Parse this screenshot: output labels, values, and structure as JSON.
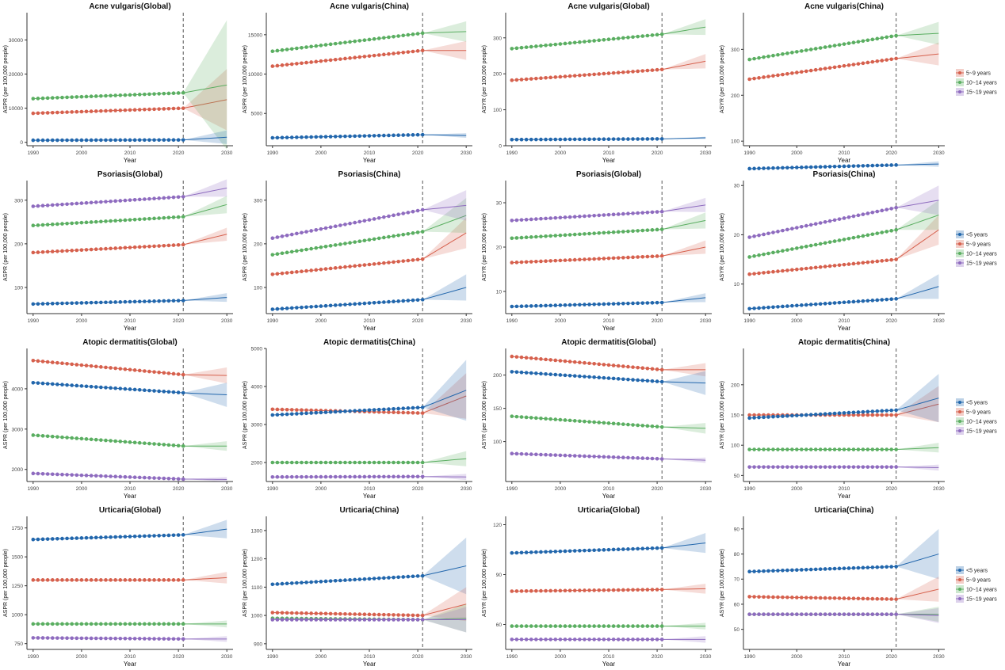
{
  "colors": {
    "u5": "#2166ac",
    "a5_9": "#d6604d",
    "a10_14": "#5aae61",
    "a15_19": "#8e6bbf",
    "axis": "#333333",
    "vline": "#555555"
  },
  "legends": [
    {
      "entries": [
        {
          "key": "a5_9",
          "label": "5~9 years"
        },
        {
          "key": "a10_14",
          "label": "10~14 years"
        },
        {
          "key": "a15_19",
          "label": "15~19 years"
        }
      ]
    },
    {
      "entries": [
        {
          "key": "u5",
          "label": "<5 years"
        },
        {
          "key": "a5_9",
          "label": "5~9 years"
        },
        {
          "key": "a10_14",
          "label": "10~14 years"
        },
        {
          "key": "a15_19",
          "label": "15~19 years"
        }
      ]
    },
    {
      "entries": [
        {
          "key": "u5",
          "label": "<5 years"
        },
        {
          "key": "a5_9",
          "label": "5~9 years"
        },
        {
          "key": "a10_14",
          "label": "10~14 years"
        },
        {
          "key": "a15_19",
          "label": "15~19 years"
        }
      ]
    },
    {
      "entries": [
        {
          "key": "u5",
          "label": "<5 years"
        },
        {
          "key": "a5_9",
          "label": "5~9 years"
        },
        {
          "key": "a10_14",
          "label": "10~14 years"
        },
        {
          "key": "a15_19",
          "label": "15~19 years"
        }
      ]
    }
  ],
  "chart_data": [
    {
      "type": "line",
      "title": "Acne vulgaris(Global)",
      "xlabel": "Year",
      "ylabel": "ASPR (per 100,000 people)",
      "xlim": [
        1990,
        2030
      ],
      "ylim": [
        -1000,
        38000
      ],
      "yticks": [
        0,
        10000,
        20000,
        30000
      ],
      "ytick_labels": [
        "0",
        "10000",
        "20000",
        "30000"
      ],
      "xticks": [
        1990,
        2000,
        2010,
        2020,
        2030
      ],
      "forecast_start": 2021,
      "series": [
        {
          "key": "a5_9",
          "start": 8500,
          "end": 10000,
          "pred_end": 12500,
          "band_end": 9000
        },
        {
          "key": "a10_14",
          "start": 12800,
          "end": 14500,
          "pred_end": 16800,
          "band_end": 19000
        },
        {
          "key": "a5_9_base",
          "color_key": "u5",
          "start": 600,
          "end": 700,
          "pred_end": 1500,
          "band_end": 2000
        }
      ]
    },
    {
      "type": "line",
      "title": "Acne vulgaris(China)",
      "xlabel": "Year",
      "ylabel": "ASPR (per 100,000 people)",
      "xlim": [
        1990,
        2030
      ],
      "ylim": [
        900,
        17800
      ],
      "yticks": [
        5000,
        10000,
        15000
      ],
      "ytick_labels": [
        "5000",
        "10000",
        "15000"
      ],
      "xticks": [
        1990,
        2000,
        2010,
        2020,
        2030
      ],
      "forecast_start": 2021,
      "series": [
        {
          "key": "a5_9",
          "start": 11000,
          "end": 13000,
          "pred_end": 13000,
          "band_end": 1200
        },
        {
          "key": "a10_14",
          "start": 12900,
          "end": 15200,
          "pred_end": 15400,
          "band_end": 1300
        },
        {
          "key": "a5_9_base",
          "color_key": "u5",
          "start": 1900,
          "end": 2300,
          "pred_end": 2200,
          "band_end": 300
        }
      ]
    },
    {
      "type": "line",
      "title": "Acne vulgaris(Global)",
      "xlabel": "Year",
      "ylabel": "ASYR (per 100,000 people)",
      "xlim": [
        1990,
        2030
      ],
      "ylim": [
        0,
        370
      ],
      "yticks": [
        0,
        100,
        200,
        300
      ],
      "ytick_labels": [
        "0",
        "100",
        "200",
        "300"
      ],
      "xticks": [
        1990,
        2000,
        2010,
        2020,
        2030
      ],
      "forecast_start": 2021,
      "series": [
        {
          "key": "a5_9",
          "start": 182,
          "end": 212,
          "pred_end": 235,
          "band_end": 20
        },
        {
          "key": "a10_14",
          "start": 270,
          "end": 310,
          "pred_end": 330,
          "band_end": 22
        },
        {
          "key": "a5_9_base",
          "color_key": "u5",
          "start": 17,
          "end": 19,
          "pred_end": 22,
          "band_end": 3
        }
      ]
    },
    {
      "type": "line",
      "title": "Acne vulgaris(China)",
      "xlabel": "Year",
      "ylabel": "ASYR (per 100,000 people)",
      "xlim": [
        1990,
        2030
      ],
      "ylim": [
        90,
        380
      ],
      "yticks": [
        100,
        200,
        300
      ],
      "ytick_labels": [
        "100",
        "200",
        "300"
      ],
      "xticks": [
        1990,
        2000,
        2010,
        2020,
        2030
      ],
      "forecast_start": 2021,
      "series": [
        {
          "key": "a5_9",
          "start": 235,
          "end": 280,
          "pred_end": 290,
          "band_end": 25
        },
        {
          "key": "a10_14",
          "start": 278,
          "end": 330,
          "pred_end": 335,
          "band_end": 25
        },
        {
          "key": "a5_9_base",
          "color_key": "u5",
          "start": 40,
          "end": 48,
          "pred_end": 50,
          "band_end": 6
        }
      ]
    },
    {
      "type": "line",
      "title": "Psoriasis(Global)",
      "xlabel": "Year",
      "ylabel": "ASPR (per 100,000 people)",
      "xlim": [
        1990,
        2030
      ],
      "ylim": [
        40,
        345
      ],
      "yticks": [
        100,
        200,
        300
      ],
      "ytick_labels": [
        "100",
        "200",
        "300"
      ],
      "xticks": [
        1990,
        2000,
        2010,
        2020,
        2030
      ],
      "forecast_start": 2021,
      "series": [
        {
          "key": "u5",
          "start": 62,
          "end": 70,
          "pred_end": 77,
          "band_end": 10
        },
        {
          "key": "a5_9",
          "start": 180,
          "end": 198,
          "pred_end": 222,
          "band_end": 15
        },
        {
          "key": "a10_14",
          "start": 242,
          "end": 262,
          "pred_end": 290,
          "band_end": 20
        },
        {
          "key": "a15_19",
          "start": 286,
          "end": 308,
          "pred_end": 328,
          "band_end": 20
        }
      ]
    },
    {
      "type": "line",
      "title": "Psoriasis(China)",
      "xlabel": "Year",
      "ylabel": "ASPR (per 100,000 people)",
      "xlim": [
        1990,
        2030
      ],
      "ylim": [
        40,
        345
      ],
      "yticks": [
        100,
        200,
        300
      ],
      "ytick_labels": [
        "100",
        "200",
        "300"
      ],
      "xticks": [
        1990,
        2000,
        2010,
        2020,
        2030
      ],
      "forecast_start": 2021,
      "series": [
        {
          "key": "u5",
          "start": 50,
          "end": 72,
          "pred_end": 100,
          "band_end": 30
        },
        {
          "key": "a5_9",
          "start": 130,
          "end": 165,
          "pred_end": 225,
          "band_end": 35
        },
        {
          "key": "a10_14",
          "start": 175,
          "end": 228,
          "pred_end": 265,
          "band_end": 40
        },
        {
          "key": "a15_19",
          "start": 213,
          "end": 278,
          "pred_end": 288,
          "band_end": 35
        }
      ]
    },
    {
      "type": "line",
      "title": "Psoriasis(Global)",
      "xlabel": "Year",
      "ylabel": "ASYR (per 100,000 people)",
      "xlim": [
        1990,
        2030
      ],
      "ylim": [
        5,
        35
      ],
      "yticks": [
        10,
        20,
        30
      ],
      "ytick_labels": [
        "10",
        "20",
        "30"
      ],
      "xticks": [
        1990,
        2000,
        2010,
        2020,
        2030
      ],
      "forecast_start": 2021,
      "series": [
        {
          "key": "u5",
          "start": 6.6,
          "end": 7.5,
          "pred_end": 8.6,
          "band_end": 1
        },
        {
          "key": "a5_9",
          "start": 16.5,
          "end": 18,
          "pred_end": 20,
          "band_end": 1.5
        },
        {
          "key": "a10_14",
          "start": 22,
          "end": 24,
          "pred_end": 26,
          "band_end": 1.8
        },
        {
          "key": "a15_19",
          "start": 26,
          "end": 28,
          "pred_end": 29.5,
          "band_end": 1.6
        }
      ]
    },
    {
      "type": "line",
      "title": "Psoriasis(China)",
      "xlabel": "Year",
      "ylabel": "ASYR (per 100,000 people)",
      "xlim": [
        1990,
        2030
      ],
      "ylim": [
        4,
        31
      ],
      "yticks": [
        10,
        20,
        30
      ],
      "ytick_labels": [
        "10",
        "20",
        "30"
      ],
      "xticks": [
        1990,
        2000,
        2010,
        2020,
        2030
      ],
      "forecast_start": 2021,
      "series": [
        {
          "key": "u5",
          "start": 5,
          "end": 7,
          "pred_end": 9.5,
          "band_end": 2.5
        },
        {
          "key": "a5_9",
          "start": 12,
          "end": 15,
          "pred_end": 21,
          "band_end": 3
        },
        {
          "key": "a10_14",
          "start": 15.5,
          "end": 21,
          "pred_end": 24,
          "band_end": 3
        },
        {
          "key": "a15_19",
          "start": 19.5,
          "end": 25.5,
          "pred_end": 27,
          "band_end": 3
        }
      ]
    },
    {
      "type": "line",
      "title": "Atopic dermatitis(Global)",
      "xlabel": "Year",
      "ylabel": "ASPR (per 100,000 people)",
      "xlim": [
        1990,
        2030
      ],
      "ylim": [
        1700,
        5000
      ],
      "yticks": [
        2000,
        3000,
        4000
      ],
      "ytick_labels": [
        "2000",
        "3000",
        "4000"
      ],
      "xticks": [
        1990,
        2000,
        2010,
        2020,
        2030
      ],
      "forecast_start": 2021,
      "series": [
        {
          "key": "a5_9",
          "start": 4700,
          "end": 4350,
          "pred_end": 4330,
          "band_end": 200
        },
        {
          "key": "u5",
          "start": 4150,
          "end": 3900,
          "pred_end": 3850,
          "band_end": 300
        },
        {
          "key": "a10_14",
          "start": 2850,
          "end": 2580,
          "pred_end": 2580,
          "band_end": 120
        },
        {
          "key": "a15_19",
          "start": 1900,
          "end": 1760,
          "pred_end": 1750,
          "band_end": 60
        }
      ]
    },
    {
      "type": "line",
      "title": "Atopic dermatitis(China)",
      "xlabel": "Year",
      "ylabel": "ASPR (per 100,000 people)",
      "xlim": [
        1990,
        2030
      ],
      "ylim": [
        1500,
        5000
      ],
      "yticks": [
        2000,
        3000,
        4000,
        5000
      ],
      "ytick_labels": [
        "2000",
        "3000",
        "4000",
        "5000"
      ],
      "xticks": [
        1990,
        2000,
        2010,
        2020,
        2030
      ],
      "forecast_start": 2021,
      "series": [
        {
          "key": "a5_9",
          "start": 3400,
          "end": 3300,
          "pred_end": 3750,
          "band_end": 600
        },
        {
          "key": "u5",
          "start": 3250,
          "end": 3450,
          "pred_end": 3900,
          "band_end": 800
        },
        {
          "key": "a10_14",
          "start": 2000,
          "end": 2000,
          "pred_end": 2100,
          "band_end": 200
        },
        {
          "key": "a15_19",
          "start": 1620,
          "end": 1630,
          "pred_end": 1620,
          "band_end": 80
        }
      ]
    },
    {
      "type": "line",
      "title": "Atopic dermatitis(Global)",
      "xlabel": "Year",
      "ylabel": "ASYR (per 100,000 people)",
      "xlim": [
        1990,
        2030
      ],
      "ylim": [
        40,
        240
      ],
      "yticks": [
        100,
        150,
        200
      ],
      "ytick_labels": [
        "100",
        "150",
        "200"
      ],
      "xticks": [
        1990,
        2000,
        2010,
        2020,
        2030
      ],
      "forecast_start": 2021,
      "series": [
        {
          "key": "a5_9",
          "start": 228,
          "end": 208,
          "pred_end": 208,
          "band_end": 10
        },
        {
          "key": "u5",
          "start": 205,
          "end": 190,
          "pred_end": 188,
          "band_end": 18
        },
        {
          "key": "a10_14",
          "start": 138,
          "end": 122,
          "pred_end": 120,
          "band_end": 8
        },
        {
          "key": "a15_19",
          "start": 82,
          "end": 74,
          "pred_end": 72,
          "band_end": 4
        }
      ]
    },
    {
      "type": "line",
      "title": "Atopic dermatitis(China)",
      "xlabel": "Year",
      "ylabel": "ASYR (per 100,000 people)",
      "xlim": [
        1990,
        2030
      ],
      "ylim": [
        40,
        260
      ],
      "yticks": [
        50,
        100,
        150,
        200
      ],
      "ytick_labels": [
        "50",
        "100",
        "150",
        "200"
      ],
      "xticks": [
        1990,
        2000,
        2010,
        2020,
        2030
      ],
      "forecast_start": 2021,
      "series": [
        {
          "key": "a5_9",
          "start": 150,
          "end": 150,
          "pred_end": 168,
          "band_end": 30
        },
        {
          "key": "u5",
          "start": 145,
          "end": 158,
          "pred_end": 178,
          "band_end": 40
        },
        {
          "key": "a10_14",
          "start": 93,
          "end": 93,
          "pred_end": 96,
          "band_end": 8
        },
        {
          "key": "a15_19",
          "start": 64,
          "end": 64,
          "pred_end": 63,
          "band_end": 5
        }
      ]
    },
    {
      "type": "line",
      "title": "Urticaria(Global)",
      "xlabel": "Year",
      "ylabel": "ASPR (per 100,000 people)",
      "xlim": [
        1990,
        2030
      ],
      "ylim": [
        700,
        1850
      ],
      "yticks": [
        750,
        1000,
        1250,
        1500,
        1750
      ],
      "ytick_labels": [
        "750",
        "1000",
        "1250",
        "1500",
        "1750"
      ],
      "xticks": [
        1990,
        2000,
        2010,
        2020,
        2030
      ],
      "forecast_start": 2021,
      "series": [
        {
          "key": "u5",
          "start": 1650,
          "end": 1690,
          "pred_end": 1740,
          "band_end": 80
        },
        {
          "key": "a5_9",
          "start": 1300,
          "end": 1300,
          "pred_end": 1320,
          "band_end": 50
        },
        {
          "key": "a10_14",
          "start": 920,
          "end": 920,
          "pred_end": 920,
          "band_end": 30
        },
        {
          "key": "a15_19",
          "start": 800,
          "end": 790,
          "pred_end": 790,
          "band_end": 25
        }
      ]
    },
    {
      "type": "line",
      "title": "Urticaria(China)",
      "xlabel": "Year",
      "ylabel": "ASPR (per 100,000 people)",
      "xlim": [
        1990,
        2030
      ],
      "ylim": [
        880,
        1350
      ],
      "yticks": [
        900,
        1000,
        1100,
        1200,
        1300
      ],
      "ytick_labels": [
        "900",
        "1000",
        "1100",
        "1200",
        "1300"
      ],
      "xticks": [
        1990,
        2000,
        2010,
        2020,
        2030
      ],
      "forecast_start": 2021,
      "series": [
        {
          "key": "u5",
          "start": 1110,
          "end": 1140,
          "pred_end": 1175,
          "band_end": 100
        },
        {
          "key": "a5_9",
          "start": 1010,
          "end": 1000,
          "pred_end": 1040,
          "band_end": 60
        },
        {
          "key": "a10_14",
          "start": 990,
          "end": 985,
          "pred_end": 990,
          "band_end": 50
        },
        {
          "key": "a15_19",
          "start": 985,
          "end": 985,
          "pred_end": 985,
          "band_end": 45
        }
      ]
    },
    {
      "type": "line",
      "title": "Urticaria(Global)",
      "xlabel": "Year",
      "ylabel": "ASYR (per 100,000 people)",
      "xlim": [
        1990,
        2030
      ],
      "ylim": [
        45,
        125
      ],
      "yticks": [
        60,
        90,
        120
      ],
      "ytick_labels": [
        "60",
        "90",
        "120"
      ],
      "xticks": [
        1990,
        2000,
        2010,
        2020,
        2030
      ],
      "forecast_start": 2021,
      "series": [
        {
          "key": "u5",
          "start": 103,
          "end": 106,
          "pred_end": 109,
          "band_end": 6
        },
        {
          "key": "a5_9",
          "start": 80,
          "end": 81,
          "pred_end": 81.5,
          "band_end": 3
        },
        {
          "key": "a10_14",
          "start": 59,
          "end": 59,
          "pred_end": 59,
          "band_end": 2
        },
        {
          "key": "a15_19",
          "start": 51,
          "end": 51,
          "pred_end": 51,
          "band_end": 2
        }
      ]
    },
    {
      "type": "line",
      "title": "Urticaria(China)",
      "xlabel": "Year",
      "ylabel": "ASYR (per 100,000 people)",
      "xlim": [
        1990,
        2030
      ],
      "ylim": [
        42,
        95
      ],
      "yticks": [
        50,
        60,
        70,
        80,
        90
      ],
      "ytick_labels": [
        "50",
        "60",
        "70",
        "80",
        "90"
      ],
      "xticks": [
        1990,
        2000,
        2010,
        2020,
        2030
      ],
      "forecast_start": 2021,
      "series": [
        {
          "key": "u5",
          "start": 73,
          "end": 75,
          "pred_end": 80,
          "band_end": 10
        },
        {
          "key": "a5_9",
          "start": 63,
          "end": 62,
          "pred_end": 66,
          "band_end": 5
        },
        {
          "key": "a10_14",
          "start": 56,
          "end": 56,
          "pred_end": 56,
          "band_end": 3
        },
        {
          "key": "a15_19",
          "start": 56,
          "end": 56,
          "pred_end": 55.5,
          "band_end": 3
        }
      ]
    }
  ]
}
